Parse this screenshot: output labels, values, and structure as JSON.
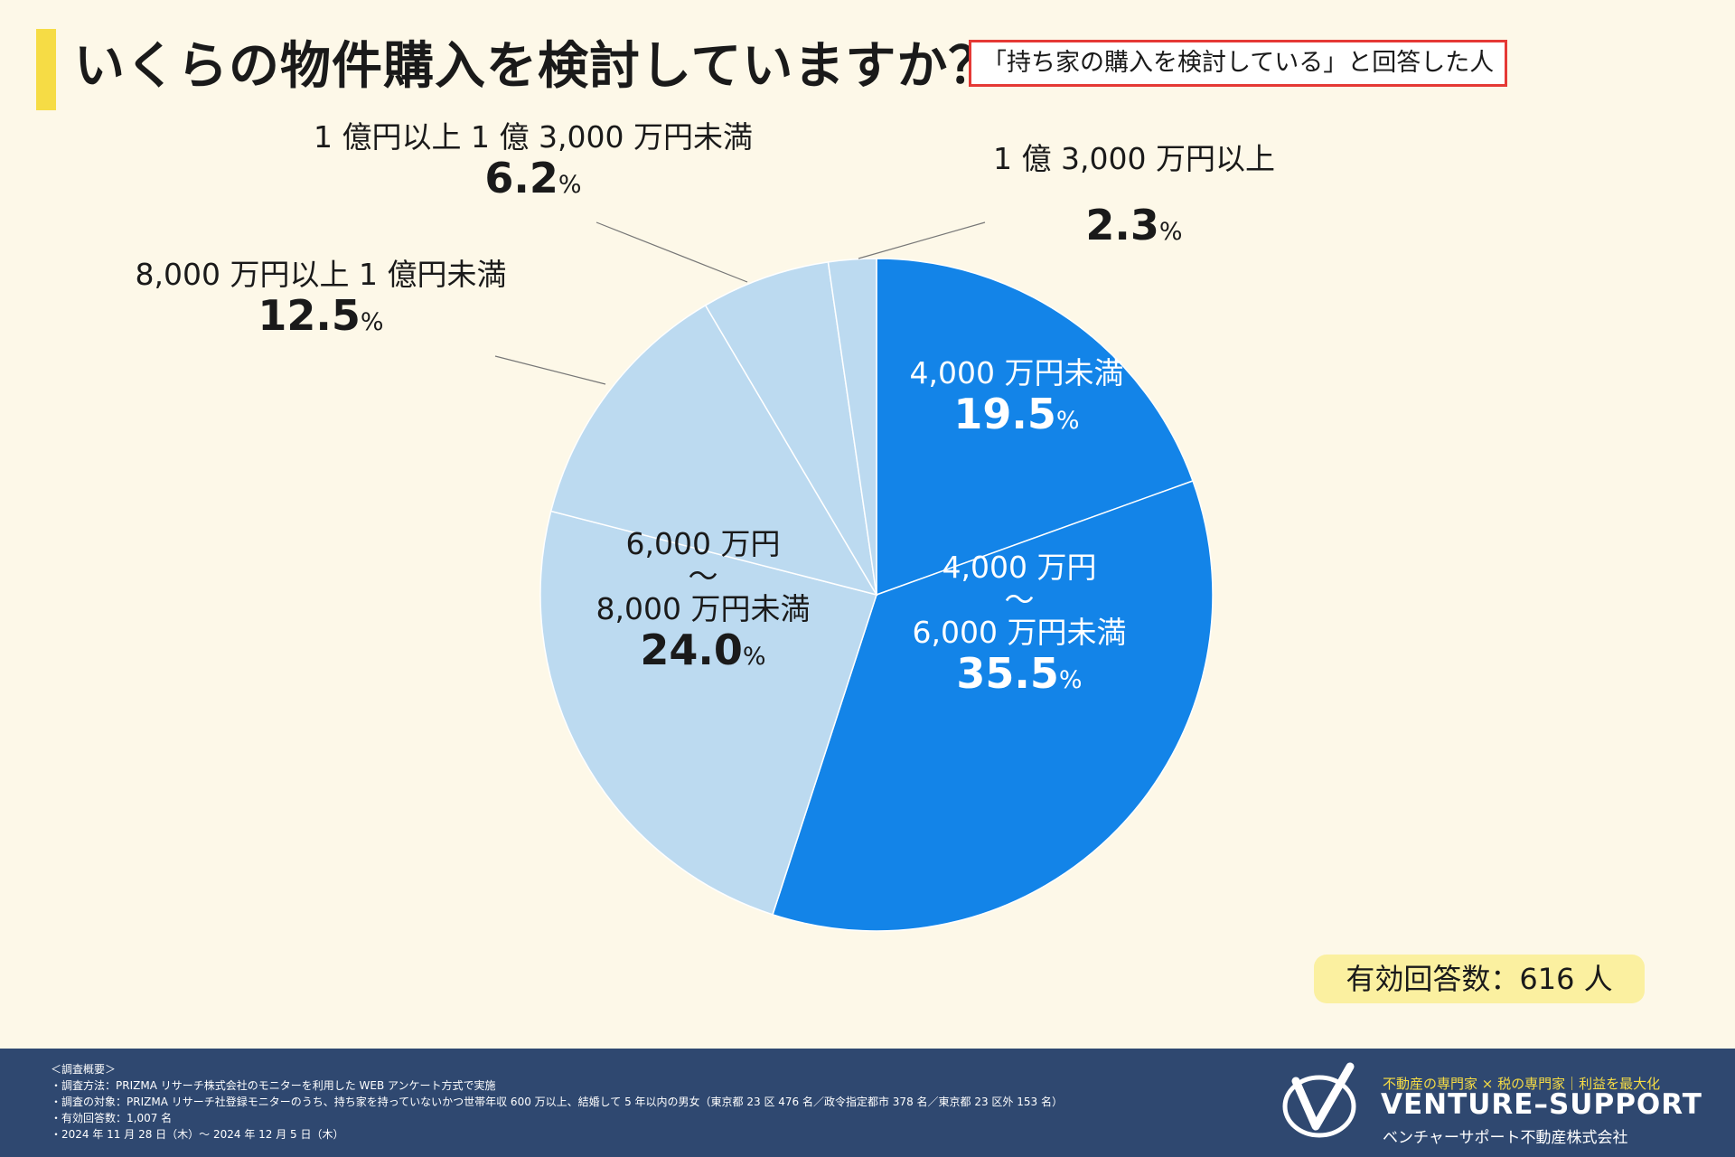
{
  "header": {
    "title": "いくらの物件購入を検討していますか？",
    "condition": "「持ち家の購入を検討している」と回答した人"
  },
  "respondents": "有効回答数：616 人",
  "colors": {
    "dark_slice": "#1384e8",
    "light_slice": "#bcdaf0",
    "accent": "#f6dc45",
    "footer": "#2f4870",
    "badge": "#fbf0a0",
    "frame": "#e53935"
  },
  "chart_data": {
    "type": "pie",
    "title": "いくらの物件購入を検討していますか？",
    "start_angle_deg": 0,
    "direction": "clockwise",
    "slices": [
      {
        "lines": [
          "4,000 万円未満"
        ],
        "value": 19.5,
        "display": "19.5",
        "color": "#1384e8",
        "text_color": "#ffffff"
      },
      {
        "lines": [
          "4,000 万円",
          "〜",
          "6,000 万円未満"
        ],
        "value": 35.5,
        "display": "35.5",
        "color": "#1384e8",
        "text_color": "#ffffff"
      },
      {
        "lines": [
          "6,000 万円",
          "〜",
          "8,000 万円未満"
        ],
        "value": 24.0,
        "display": "24.0",
        "color": "#bcdaf0",
        "text_color": "#1a1a1a"
      },
      {
        "lines": [
          "8,000 万円以上 1 億円未満"
        ],
        "value": 12.5,
        "display": "12.5",
        "color": "#bcdaf0",
        "text_color": "#1a1a1a"
      },
      {
        "lines": [
          "1 億円以上 1 億 3,000 万円未満"
        ],
        "value": 6.2,
        "display": "6.2",
        "color": "#bcdaf0",
        "text_color": "#1a1a1a"
      },
      {
        "lines": [
          "1 億 3,000 万円以上"
        ],
        "value": 2.3,
        "display": "2.3",
        "color": "#bcdaf0",
        "text_color": "#1a1a1a"
      }
    ],
    "unit": "%"
  },
  "footer": {
    "notes": [
      "＜調査概要＞",
      "・調査方法：PRIZMA リサーチ株式会社のモニターを利用した WEB アンケート方式で実施",
      "・調査の対象：PRIZMA リサーチ社登録モニターのうち、持ち家を持っていないかつ世帯年収 600 万以上、結婚して 5 年以内の男女（東京都 23 区 476 名／政令指定都市 378 名／東京都 23 区外 153 名）",
      "・有効回答数：1,007 名",
      "・2024 年 11 月 28 日（木）〜 2024 年 12 月 5 日（木）"
    ],
    "tagline": "不動産の専門家 × 税の専門家｜利益を最大化",
    "brand": "VENTURE–SUPPORT",
    "company": "ベンチャーサポート不動産株式会社"
  }
}
